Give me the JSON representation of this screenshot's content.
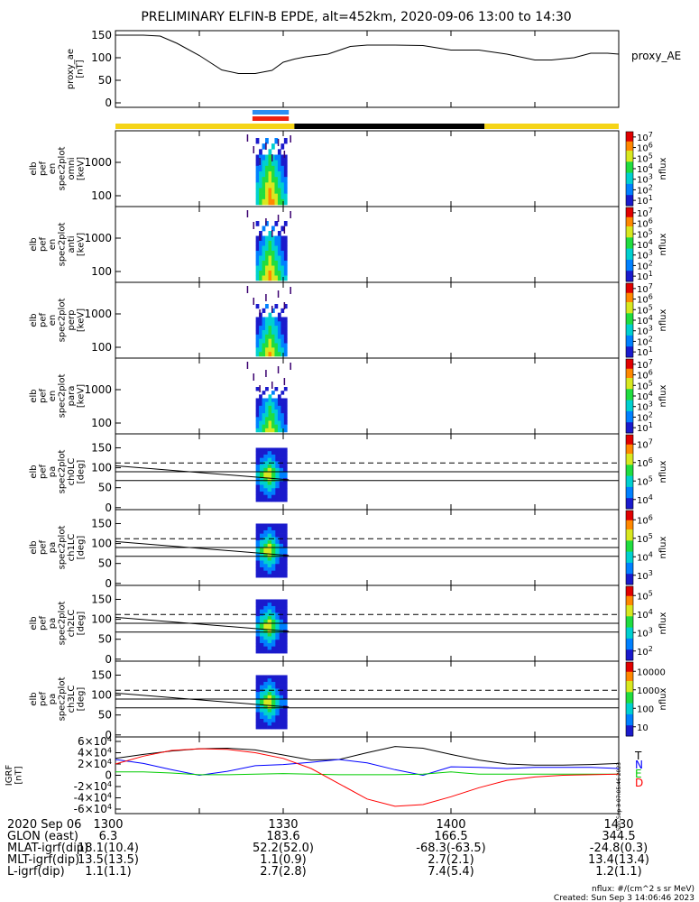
{
  "title": "PRELIMINARY ELFIN-B EPDE, alt=452km, 2020-09-06 13:00 to 14:30",
  "chart_data": [
    {
      "type": "line",
      "panel": "proxy_ae",
      "ylabel": [
        "proxy_ae",
        "[nT]"
      ],
      "legend": "proxy_AE",
      "ylim": [
        -10,
        160
      ],
      "yticks": [
        "0",
        "50",
        "100",
        "150"
      ],
      "x_minutes": [
        0,
        5,
        8,
        11,
        15,
        19,
        22,
        25,
        28,
        30,
        32,
        34,
        38,
        42,
        45,
        50,
        55,
        60,
        65,
        70,
        75,
        78,
        82,
        85,
        88,
        90
      ],
      "values": [
        150,
        150,
        148,
        132,
        105,
        73,
        65,
        65,
        72,
        90,
        97,
        102,
        108,
        125,
        128,
        128,
        127,
        117,
        117,
        108,
        95,
        95,
        100,
        110,
        110,
        108
      ]
    },
    {
      "type": "heatmap",
      "panel": "energy-omni",
      "ylabel": [
        "elb",
        "pef",
        "en",
        "spec2plot",
        "omni",
        "[keV]"
      ],
      "yticks": [
        "100",
        "1000"
      ],
      "colorbar": {
        "label": "nflux",
        "ticks": [
          "10^1",
          "10^2",
          "10^3",
          "10^4",
          "10^5",
          "10^6",
          "10^7"
        ]
      }
    },
    {
      "type": "heatmap",
      "panel": "energy-anti",
      "ylabel": [
        "elb",
        "pef",
        "en",
        "spec2plot",
        "anti",
        "[keV]"
      ],
      "yticks": [
        "100",
        "1000"
      ],
      "colorbar": {
        "label": "nflux",
        "ticks": [
          "10^1",
          "10^2",
          "10^3",
          "10^4",
          "10^5",
          "10^6",
          "10^7"
        ]
      }
    },
    {
      "type": "heatmap",
      "panel": "energy-perp",
      "ylabel": [
        "elb",
        "pef",
        "en",
        "spec2plot",
        "perp",
        "[keV]"
      ],
      "yticks": [
        "100",
        "1000"
      ],
      "colorbar": {
        "label": "nflux",
        "ticks": [
          "10^1",
          "10^2",
          "10^3",
          "10^4",
          "10^5",
          "10^6",
          "10^7"
        ]
      }
    },
    {
      "type": "heatmap",
      "panel": "energy-para",
      "ylabel": [
        "elb",
        "pef",
        "en",
        "spec2plot",
        "para",
        "[keV]"
      ],
      "yticks": [
        "100",
        "1000"
      ],
      "colorbar": {
        "label": "nflux",
        "ticks": [
          "10^1",
          "10^2",
          "10^3",
          "10^4",
          "10^5",
          "10^6",
          "10^7"
        ]
      }
    },
    {
      "type": "heatmap",
      "panel": "pa-ch0LC",
      "ylabel": [
        "elb",
        "pef",
        "pa",
        "spec2plot",
        "ch0LC",
        "[deg]"
      ],
      "yticks": [
        "0",
        "50",
        "100",
        "150"
      ],
      "colorbar": {
        "label": "nflux",
        "ticks": [
          "10^4",
          "10^5",
          "10^6",
          "10^7"
        ]
      }
    },
    {
      "type": "heatmap",
      "panel": "pa-ch1LC",
      "ylabel": [
        "elb",
        "pef",
        "pa",
        "spec2plot",
        "ch1LC",
        "[deg]"
      ],
      "yticks": [
        "0",
        "50",
        "100",
        "150"
      ],
      "colorbar": {
        "label": "nflux",
        "ticks": [
          "10^3",
          "10^4",
          "10^5",
          "10^6"
        ]
      }
    },
    {
      "type": "heatmap",
      "panel": "pa-ch2LC",
      "ylabel": [
        "elb",
        "pef",
        "pa",
        "spec2plot",
        "ch2LC",
        "[deg]"
      ],
      "yticks": [
        "0",
        "50",
        "100",
        "150"
      ],
      "colorbar": {
        "label": "nflux",
        "ticks": [
          "10^2",
          "10^3",
          "10^4",
          "10^5"
        ]
      }
    },
    {
      "type": "heatmap",
      "panel": "pa-ch3LC",
      "ylabel": [
        "elb",
        "pef",
        "pa",
        "spec2plot",
        "ch3LC",
        "[deg]"
      ],
      "yticks": [
        "0",
        "50",
        "100",
        "150"
      ],
      "colorbar": {
        "label": "nflux",
        "ticks": [
          "10",
          "100",
          "1000",
          "10000"
        ]
      }
    },
    {
      "type": "line",
      "panel": "igrf",
      "ylabel": [
        "IGRF",
        "[nT]"
      ],
      "ylim": [
        -68000,
        68000
      ],
      "yticks": [
        "-6×10^4",
        "-4×10^4",
        "-2×10^4",
        "0",
        "2×10^4",
        "4×10^4",
        "6×10^4"
      ],
      "x_minutes": [
        0,
        5,
        10,
        15,
        20,
        25,
        30,
        35,
        40,
        45,
        50,
        55,
        60,
        65,
        70,
        75,
        80,
        85,
        90
      ],
      "series": [
        {
          "name": "T",
          "color": "#000000",
          "values": [
            30000,
            37000,
            43000,
            47000,
            48000,
            45000,
            36000,
            27000,
            28000,
            40000,
            51000,
            48000,
            37000,
            27000,
            20000,
            18000,
            18000,
            19000,
            21000
          ]
        },
        {
          "name": "N",
          "color": "#0000ff",
          "values": [
            28000,
            21000,
            10000,
            0,
            7000,
            17000,
            19000,
            23000,
            28000,
            22000,
            10000,
            0,
            15000,
            14000,
            12000,
            14000,
            14000,
            14000,
            12000
          ]
        },
        {
          "name": "E",
          "color": "#00cc00",
          "values": [
            6000,
            6000,
            4000,
            1000,
            1000,
            2000,
            3000,
            2000,
            1000,
            1000,
            1000,
            2000,
            6000,
            2000,
            2000,
            2000,
            2000,
            2000,
            2000
          ]
        },
        {
          "name": "D",
          "color": "#ff0000",
          "values": [
            20000,
            34000,
            44000,
            47000,
            46000,
            40000,
            30000,
            12000,
            -15000,
            -42000,
            -55000,
            -52000,
            -38000,
            -22000,
            -9000,
            -3000,
            0,
            1000,
            2000
          ]
        }
      ]
    }
  ],
  "color_bar": {
    "segments": [
      {
        "from": 0,
        "to": 32,
        "color": "#f5d417"
      },
      {
        "from": 32,
        "to": 66,
        "color": "#000000"
      },
      {
        "from": 66,
        "to": 90,
        "color": "#f5d417"
      }
    ],
    "markers": [
      {
        "from": 24.5,
        "to": 31,
        "color": "#2b8ef2"
      },
      {
        "from": 24.5,
        "to": 31,
        "color": "#ee2211"
      }
    ]
  },
  "x_axis": {
    "row_labels": [
      "2020 Sep 06",
      "GLON (east)",
      "MLAT-igrf(dip)",
      "MLT-igrf(dip)",
      "L-igrf(dip)"
    ],
    "columns": [
      {
        "minute": 0,
        "values": [
          "1300",
          "6.3",
          "18.1(10.4)",
          "13.5(13.5)",
          "1.1(1.1)"
        ]
      },
      {
        "minute": 30,
        "values": [
          "1330",
          "183.6",
          "52.2(52.0)",
          "1.1(0.9)",
          "2.7(2.8)"
        ]
      },
      {
        "minute": 60,
        "values": [
          "1400",
          "166.5",
          "-68.3(-63.5)",
          "2.7(2.1)",
          "7.4(5.4)"
        ]
      },
      {
        "minute": 90,
        "values": [
          "1430",
          "344.5",
          "-24.8(0.3)",
          "13.4(13.4)",
          "1.2(1.1)"
        ]
      }
    ]
  },
  "footer": {
    "units": "nflux: #/(cm^2 s sr MeV)",
    "created": "Created: Sun Sep  3 14:06:46 2023"
  },
  "side_stamp": "Sun Sep  3 07:05:46 2023"
}
